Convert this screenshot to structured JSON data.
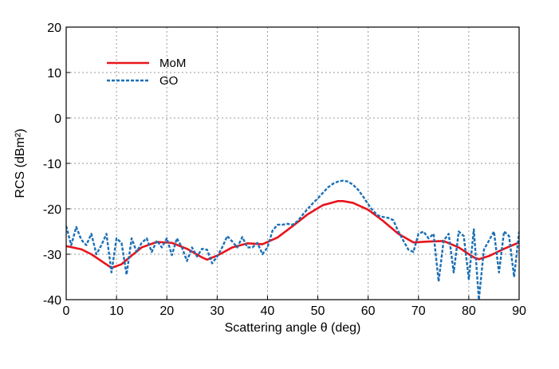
{
  "chart_data": {
    "type": "line",
    "title": "",
    "xlabel": "Scattering angle θ (deg)",
    "ylabel": "RCS (dBm²)",
    "xlim": [
      0,
      90
    ],
    "ylim": [
      -40,
      20
    ],
    "xticks": [
      0,
      10,
      20,
      30,
      40,
      50,
      60,
      70,
      80,
      90
    ],
    "yticks": [
      20,
      10,
      0,
      -10,
      -20,
      -30,
      -40
    ],
    "grid": true,
    "legend_position": "top-left",
    "series": [
      {
        "name": "MoM",
        "color": "#e8141c",
        "style": "solid",
        "x": [
          0,
          3,
          5,
          7,
          9,
          11,
          13,
          15,
          18,
          21,
          24,
          27,
          28,
          30,
          33,
          36,
          39,
          42,
          45,
          48,
          51,
          54,
          55,
          57,
          60,
          63,
          66,
          69,
          72,
          75,
          78,
          81,
          82,
          84,
          87,
          90
        ],
        "y": [
          -28.2,
          -28.9,
          -30,
          -31.5,
          -33,
          -32.2,
          -30.3,
          -28.5,
          -27.3,
          -27.5,
          -28.8,
          -30.7,
          -31.2,
          -30.3,
          -28.5,
          -27.6,
          -27.8,
          -26.3,
          -23.8,
          -21.2,
          -19.2,
          -18.3,
          -18.3,
          -18.7,
          -20.2,
          -22.7,
          -25.5,
          -27.4,
          -27.2,
          -27.1,
          -28.5,
          -30.7,
          -31.1,
          -30.4,
          -28.8,
          -27.4
        ]
      },
      {
        "name": "GO",
        "color": "#1a6fb5",
        "style": "dashed",
        "x": [
          0,
          1,
          2,
          3,
          4,
          5,
          6,
          7,
          8,
          9,
          10,
          11,
          12,
          13,
          14,
          15,
          16,
          17,
          18,
          19,
          20,
          21,
          22,
          23,
          24,
          25,
          26,
          27,
          28,
          29,
          30,
          31,
          32,
          33,
          34,
          35,
          36,
          37,
          38,
          39,
          40,
          41,
          42,
          43,
          44,
          45,
          46,
          47,
          48,
          49,
          50,
          51,
          52,
          53,
          54,
          55,
          56,
          57,
          58,
          59,
          60,
          61,
          62,
          63,
          64,
          65,
          66,
          67,
          68,
          69,
          70,
          71,
          72,
          73,
          74,
          75,
          76,
          77,
          78,
          79,
          80,
          81,
          82,
          83,
          84,
          85,
          86,
          87,
          88,
          89,
          90
        ],
        "y": [
          -23.8,
          -28,
          -24,
          -26.8,
          -28,
          -25.5,
          -30,
          -28,
          -25.5,
          -34,
          -26.5,
          -27.5,
          -34.5,
          -26.5,
          -29.5,
          -27.5,
          -26.5,
          -29.5,
          -27,
          -28.5,
          -26.5,
          -30.2,
          -26.5,
          -28.5,
          -31.5,
          -28.5,
          -30.5,
          -28.8,
          -29,
          -32,
          -30.5,
          -28.5,
          -26,
          -27.2,
          -28.5,
          -26.2,
          -28.5,
          -28.5,
          -27.5,
          -30,
          -28.5,
          -24.8,
          -23.5,
          -23.5,
          -23.3,
          -23.5,
          -22.7,
          -21.3,
          -20,
          -18.8,
          -17.7,
          -16.5,
          -15.3,
          -14.5,
          -14,
          -13.8,
          -14,
          -14.7,
          -15.8,
          -17.3,
          -19,
          -20.5,
          -21.5,
          -21.8,
          -22,
          -22.5,
          -25,
          -27,
          -29,
          -29.5,
          -25.5,
          -25,
          -26.5,
          -25.5,
          -36,
          -27,
          -25.5,
          -34,
          -25,
          -26,
          -35.5,
          -24.5,
          -40,
          -29,
          -27,
          -25,
          -34,
          -25,
          -26,
          -35,
          -25
        ]
      }
    ]
  }
}
